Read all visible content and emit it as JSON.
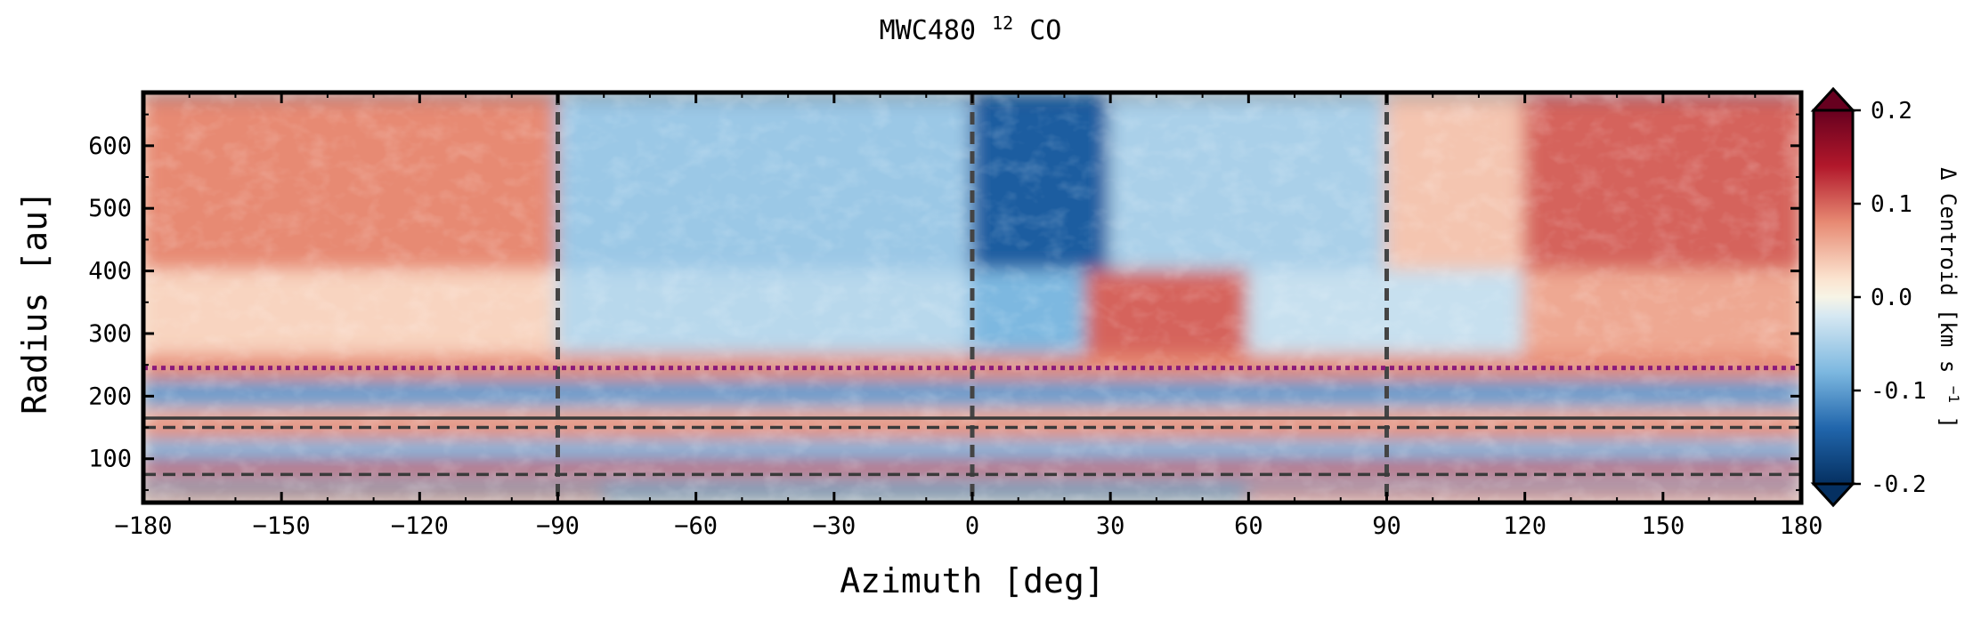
{
  "chart_data": {
    "type": "heatmap",
    "title": "MWC480",
    "title_superscript": "12",
    "title_suffix": "CO",
    "xlabel": "Azimuth [deg]",
    "ylabel": "Radius [au]",
    "xlim": [
      -180,
      180
    ],
    "ylim": [
      30,
      685
    ],
    "x_ticks": [
      -180,
      -150,
      -120,
      -90,
      -60,
      -30,
      0,
      30,
      60,
      90,
      120,
      150,
      180
    ],
    "x_tick_labels": [
      "−180",
      "−150",
      "−120",
      "−90",
      "−60",
      "−30",
      "0",
      "30",
      "60",
      "90",
      "120",
      "150",
      "180"
    ],
    "y_ticks": [
      100,
      200,
      300,
      400,
      500,
      600
    ],
    "y_tick_labels": [
      "100",
      "200",
      "300",
      "400",
      "500",
      "600"
    ],
    "colorbar": {
      "label": "Δ Centroid [km s",
      "label_superscript": "−1",
      "label_suffix": "]",
      "range": [
        -0.2,
        0.2
      ],
      "ticks": [
        0.2,
        0.1,
        0.0,
        -0.1,
        -0.2
      ],
      "tick_labels": [
        "0.2",
        "0.1",
        "0.0",
        "-0.1",
        "-0.2"
      ],
      "colormap": "RdBu_r",
      "extend": "both"
    },
    "vertical_dashed_lines_x": [
      -90,
      0,
      90
    ],
    "horizontal_lines": [
      {
        "y": 245,
        "style": "dotted",
        "color": "#8b1a7a"
      },
      {
        "y": 165,
        "style": "solid",
        "color": "#3a3a3a"
      },
      {
        "y": 150,
        "style": "dashed",
        "color": "#3a3a3a"
      },
      {
        "y": 75,
        "style": "dashed",
        "color": "#3a3a3a"
      }
    ],
    "bands": [
      {
        "r": [
          675,
          685
        ],
        "value": -0.2
      },
      {
        "r": [
          400,
          675
        ],
        "az_regions": [
          {
            "az": [
              -180,
              -90
            ],
            "value": 0.08
          },
          {
            "az": [
              -90,
              0
            ],
            "value": -0.06
          },
          {
            "az": [
              0,
              30
            ],
            "value": -0.15
          },
          {
            "az": [
              30,
              90
            ],
            "value": -0.05
          },
          {
            "az": [
              90,
              120
            ],
            "value": 0.04
          },
          {
            "az": [
              120,
              180
            ],
            "value": 0.1
          }
        ]
      },
      {
        "r": [
          265,
          400
        ],
        "az_regions": [
          {
            "az": [
              -180,
              -90
            ],
            "value": 0.03
          },
          {
            "az": [
              -90,
              0
            ],
            "value": -0.04
          },
          {
            "az": [
              0,
              25
            ],
            "value": -0.08
          },
          {
            "az": [
              25,
              60
            ],
            "value": 0.1
          },
          {
            "az": [
              60,
              120
            ],
            "value": -0.03
          },
          {
            "az": [
              120,
              180
            ],
            "value": 0.06
          }
        ]
      },
      {
        "r": [
          225,
          265
        ],
        "value": 0.08
      },
      {
        "r": [
          180,
          225
        ],
        "value": -0.1
      },
      {
        "r": [
          160,
          180
        ],
        "value": 0.05
      },
      {
        "r": [
          130,
          160
        ],
        "value": 0.08
      },
      {
        "r": [
          95,
          130
        ],
        "value": -0.08
      },
      {
        "r": [
          70,
          95
        ],
        "value": 0.12
      },
      {
        "r": [
          55,
          70
        ],
        "value": -0.05
      },
      {
        "r": [
          40,
          55
        ],
        "az_regions": [
          {
            "az": [
              -180,
              -80
            ],
            "value": 0.18
          },
          {
            "az": [
              -80,
              60
            ],
            "value": -0.18
          },
          {
            "az": [
              60,
              180
            ],
            "value": 0.15
          }
        ]
      }
    ],
    "grid": false,
    "legend": "none"
  }
}
